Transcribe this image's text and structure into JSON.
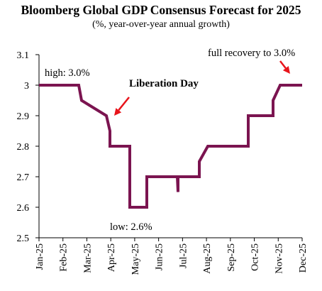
{
  "chart_data": {
    "type": "line",
    "title": "Bloomberg Global GDP Consensus Forecast for 2025",
    "subtitle": "(%, year-over-year annual growth)",
    "xlabel": "",
    "ylabel": "",
    "ylim": [
      2.5,
      3.1
    ],
    "yticks": [
      "2.5",
      "2.6",
      "2.7",
      "2.8",
      "2.9",
      "3",
      "3.1"
    ],
    "xticks": [
      "Jan-25",
      "Feb-25",
      "Mar-25",
      "Apr-25",
      "May-25",
      "Jun-25",
      "Jul-25",
      "Aug-25",
      "Sep-25",
      "Oct-25",
      "Nov-25",
      "Dec-25"
    ],
    "grid": false,
    "line_color": "#7b1450",
    "annotation_color": "#e8141b",
    "series": [
      {
        "points": [
          [
            "Jan-25",
            3.0
          ],
          [
            "Feb-25",
            3.0
          ],
          [
            "Feb-25",
            3.0
          ],
          [
            "Mar-25",
            2.95
          ],
          [
            "Mar-25",
            2.9
          ],
          [
            "Apr-25",
            2.9
          ],
          [
            "Apr-25",
            2.85
          ],
          [
            "Apr-25",
            2.8
          ],
          [
            "May-25",
            2.8
          ],
          [
            "May-25",
            2.6
          ],
          [
            "May-25",
            2.6
          ],
          [
            "May-25",
            2.7
          ],
          [
            "Jun-25",
            2.7
          ],
          [
            "Jul-25",
            2.7
          ],
          [
            "Jul-25",
            2.65
          ],
          [
            "Jul-25",
            2.7
          ],
          [
            "Aug-25",
            2.7
          ],
          [
            "Aug-25",
            2.75
          ],
          [
            "Aug-25",
            2.8
          ],
          [
            "Sep-25",
            2.8
          ],
          [
            "Oct-25",
            2.8
          ],
          [
            "Oct-25",
            2.9
          ],
          [
            "Nov-25",
            2.9
          ],
          [
            "Nov-25",
            2.95
          ],
          [
            "Nov-25",
            3.0
          ],
          [
            "Dec-25",
            3.0
          ]
        ]
      }
    ],
    "annotations": [
      {
        "id": "high",
        "text": "high: 3.0%"
      },
      {
        "id": "liberation",
        "text": "Liberation Day"
      },
      {
        "id": "low",
        "text": "low: 2.6%"
      },
      {
        "id": "recovery",
        "text": "full recovery to 3.0%"
      }
    ]
  }
}
